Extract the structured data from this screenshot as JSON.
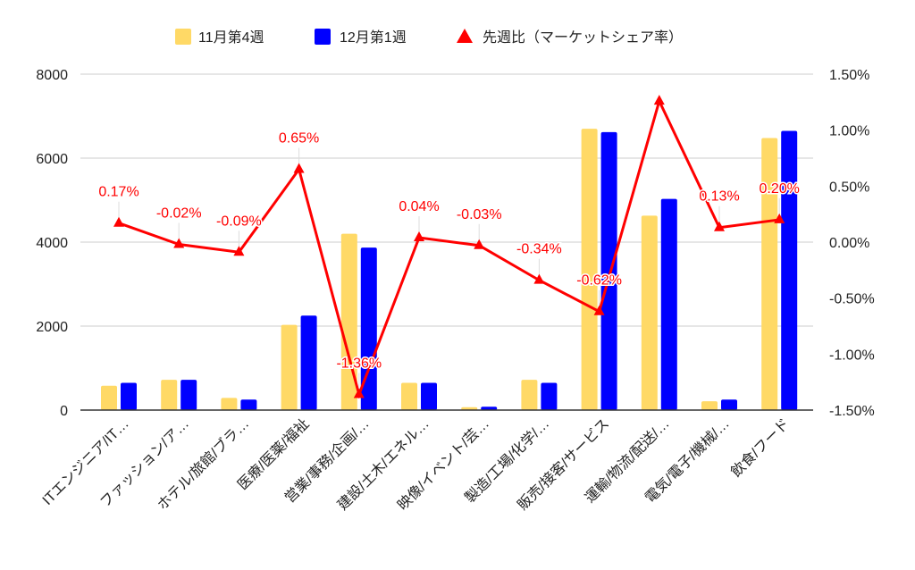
{
  "chart_data": {
    "type": "bar",
    "title": "",
    "categories": [
      "ITエンジニア/IT…",
      "ファッション/ア…",
      "ホテル/旅館/ブラ…",
      "医療/医薬/福祉",
      "営業/事務/企画/…",
      "建設/土木/エネル…",
      "映像/イベント/芸…",
      "製造/工場/化学/…",
      "販売/接客/サービス",
      "運輸/物流/配送/…",
      "電気/電子/機械/…",
      "飲食/フード"
    ],
    "series": [
      {
        "name": "11月第4週",
        "type": "bar",
        "axis": "left",
        "color": "#FFD966",
        "values": [
          580,
          720,
          290,
          2030,
          4200,
          650,
          70,
          720,
          6700,
          4630,
          210,
          6480
        ]
      },
      {
        "name": "12月第1週",
        "type": "bar",
        "axis": "left",
        "color": "#0000FF",
        "values": [
          650,
          720,
          250,
          2250,
          3870,
          650,
          80,
          650,
          6620,
          5030,
          250,
          6650
        ]
      },
      {
        "name": "先週比（マーケットシェア率）",
        "type": "line",
        "axis": "right",
        "color": "#FF0000",
        "marker": "triangle",
        "values": [
          0.17,
          -0.02,
          -0.09,
          0.65,
          -1.36,
          0.04,
          -0.03,
          -0.34,
          -0.62,
          1.26,
          0.13,
          0.2
        ],
        "labels": [
          "0.17%",
          "-0.02%",
          "-0.09%",
          "0.65%",
          "-1.36%",
          "0.04%",
          "-0.03%",
          "-0.34%",
          "-0.62%",
          null,
          "0.13%",
          "0.20%"
        ]
      }
    ],
    "left_axis": {
      "range": [
        0,
        8000
      ],
      "ticks": [
        "0",
        "2000",
        "4000",
        "6000",
        "8000"
      ]
    },
    "right_axis": {
      "range": [
        -1.5,
        1.5
      ],
      "ticks": [
        "-1.50%",
        "-1.00%",
        "-0.50%",
        "0.00%",
        "0.50%",
        "1.00%",
        "1.50%"
      ]
    },
    "grid": true,
    "legend_position": "top"
  }
}
